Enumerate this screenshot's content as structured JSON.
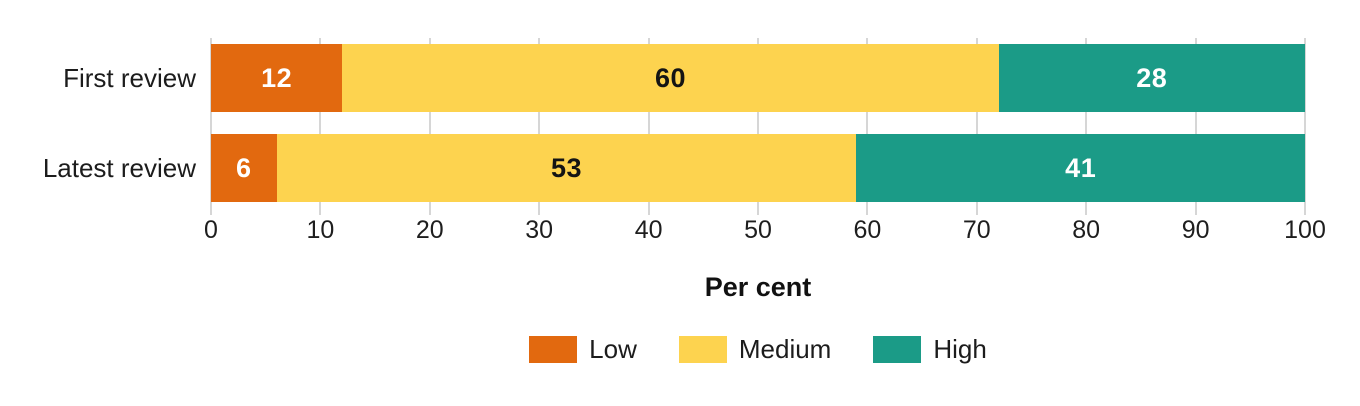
{
  "chart_data": {
    "type": "bar",
    "orientation": "horizontal",
    "stacked": true,
    "title": "",
    "xlabel": "Per cent",
    "ylabel": "",
    "xlim": [
      0,
      100
    ],
    "xticks": [
      "0",
      "10",
      "20",
      "30",
      "40",
      "50",
      "60",
      "70",
      "80",
      "90",
      "100"
    ],
    "grid": "vertical",
    "legend_position": "bottom",
    "categories": [
      "First review",
      "Latest review"
    ],
    "series": [
      {
        "name": "Low",
        "color": "#e2690f",
        "label_color": "#ffffff",
        "values": [
          12,
          6
        ]
      },
      {
        "name": "Medium",
        "color": "#fdd34f",
        "label_color": "#141414",
        "values": [
          60,
          53
        ]
      },
      {
        "name": "High",
        "color": "#1b9b87",
        "label_color": "#ffffff",
        "values": [
          28,
          41
        ]
      }
    ]
  },
  "style": {
    "gridline_color": "#d6d6d6",
    "text_color": "#1c1c1c",
    "background_color": "#ffffff"
  }
}
